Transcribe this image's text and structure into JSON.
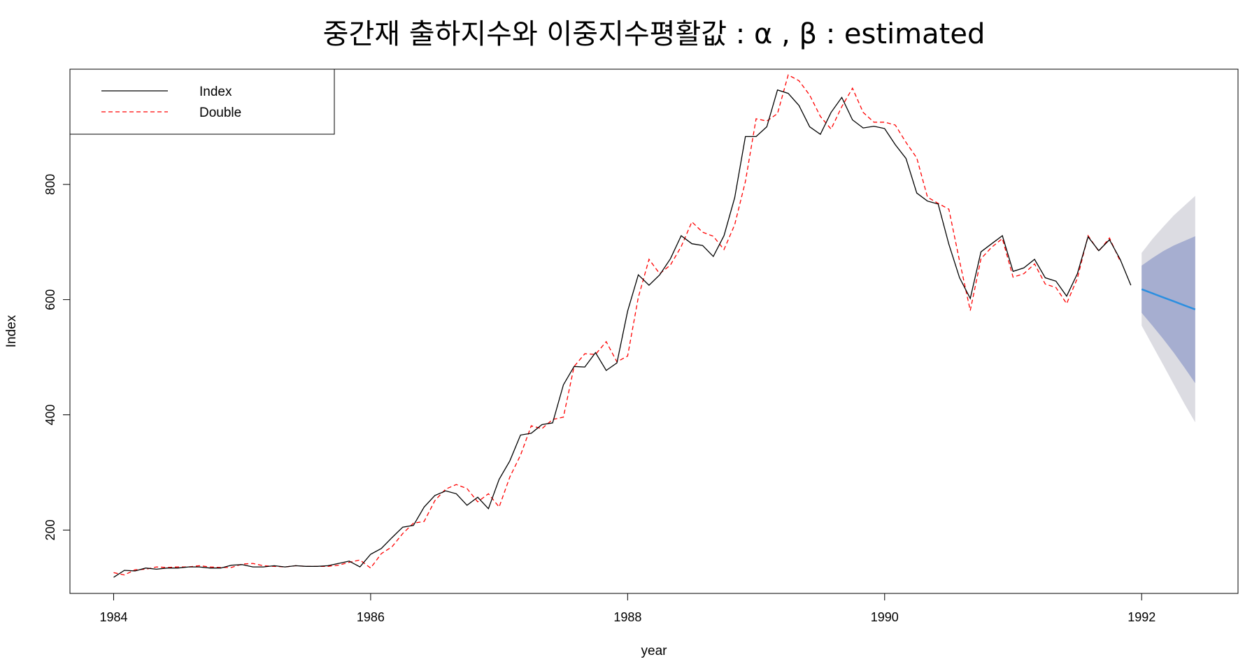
{
  "chart_data": {
    "type": "line",
    "title": "중간재 출하지수와 이중지수평활값 :  α , β  : estimated",
    "xlabel": "year",
    "ylabel": "Index",
    "xlim": [
      1983.66,
      1992.75
    ],
    "ylim": [
      90,
      1000
    ],
    "x_ticks": [
      1984,
      1986,
      1988,
      1990,
      1992
    ],
    "y_ticks": [
      200,
      400,
      600,
      800
    ],
    "legend": {
      "position": "top-left",
      "entries": [
        "Index",
        "Double"
      ]
    },
    "colors": {
      "index": "#000000",
      "double": "#ff0000",
      "forecast": "#2c8fe0",
      "band80": "#a6aed0",
      "band95": "#dcdce2"
    },
    "series": [
      {
        "name": "Index",
        "start": 1984.0,
        "step": 0.08333,
        "values": [
          118,
          130,
          129,
          134,
          132,
          134,
          134,
          136,
          136,
          134,
          134,
          139,
          140,
          136,
          136,
          138,
          136,
          138,
          137,
          137,
          138,
          142,
          146,
          136,
          158,
          168,
          187,
          205,
          208,
          240,
          260,
          268,
          263,
          243,
          257,
          237,
          288,
          320,
          365,
          368,
          383,
          386,
          452,
          484,
          483,
          508,
          477,
          490,
          580,
          643,
          625,
          643,
          671,
          711,
          697,
          694,
          675,
          711,
          777,
          883,
          883,
          900,
          964,
          958,
          937,
          900,
          887,
          925,
          951,
          912,
          898,
          901,
          897,
          869,
          845,
          785,
          771,
          766,
          696,
          638,
          602,
          683,
          697,
          711,
          649,
          655,
          670,
          638,
          632,
          606,
          645,
          709,
          685,
          704,
          670,
          625
        ]
      },
      {
        "name": "Double",
        "start": 1984.0,
        "step": 0.08333,
        "values": [
          126,
          122,
          131,
          132,
          136,
          135,
          136,
          136,
          138,
          136,
          135,
          135,
          141,
          142,
          138,
          137,
          136,
          138,
          137,
          137,
          137,
          139,
          144,
          148,
          134,
          159,
          171,
          194,
          212,
          215,
          251,
          271,
          279,
          272,
          249,
          263,
          240,
          292,
          330,
          381,
          376,
          392,
          396,
          484,
          506,
          505,
          527,
          492,
          502,
          604,
          670,
          645,
          660,
          692,
          735,
          717,
          710,
          687,
          730,
          805,
          914,
          910,
          923,
          990,
          980,
          955,
          918,
          896,
          935,
          967,
          925,
          908,
          908,
          903,
          873,
          846,
          778,
          767,
          757,
          667,
          581,
          671,
          691,
          706,
          639,
          645,
          662,
          627,
          621,
          593,
          637,
          711,
          684,
          707,
          667
        ]
      }
    ],
    "forecast": {
      "x": [
        1992.0,
        1992.083,
        1992.167,
        1992.25,
        1992.333,
        1992.417
      ],
      "mean": [
        618,
        611,
        604,
        597,
        590,
        583
      ],
      "lower80": [
        577,
        555,
        532,
        508,
        482,
        455
      ],
      "upper80": [
        659,
        672,
        684,
        694,
        702,
        710
      ],
      "lower95": [
        555,
        521,
        487,
        453,
        419,
        387
      ],
      "upper95": [
        681,
        705,
        726,
        746,
        763,
        780
      ]
    }
  }
}
